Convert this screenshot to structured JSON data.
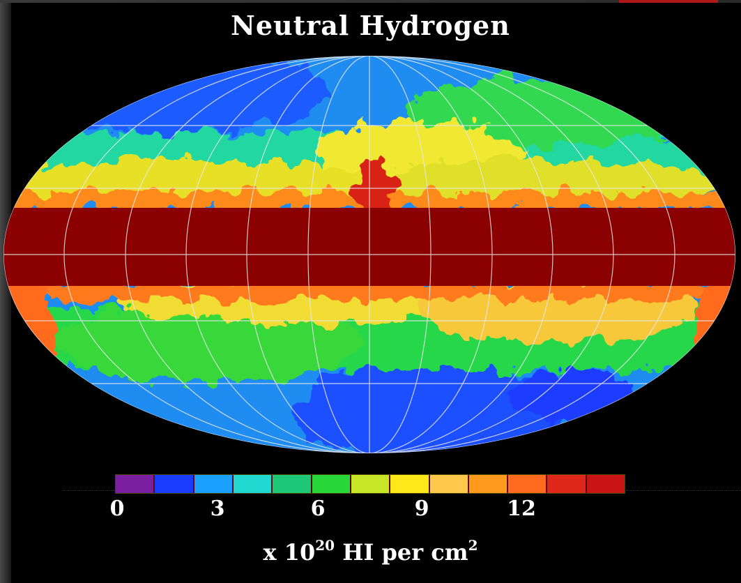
{
  "title": "Neutral Hydrogen",
  "colorbar": {
    "colors": [
      "#7a1fa0",
      "#1a3cff",
      "#1aa0ff",
      "#20d8d0",
      "#1ec878",
      "#28d83a",
      "#c8e628",
      "#ffe81a",
      "#ffc84a",
      "#ff9a1e",
      "#ff6a1e",
      "#e0281a",
      "#c81414"
    ],
    "ticks": [
      "0",
      "3",
      "6",
      "9",
      "12"
    ]
  },
  "units": {
    "prefix": "x 10",
    "exponent": "20",
    "middle": " HI per cm",
    "suffix_exponent": "2"
  }
}
